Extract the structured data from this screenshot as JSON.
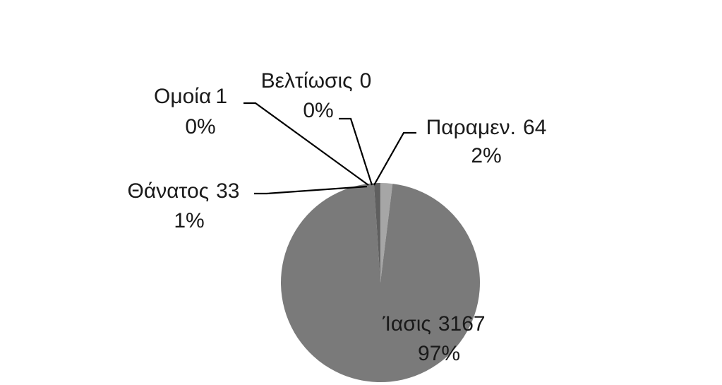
{
  "chart_data": {
    "type": "pie",
    "title": "",
    "start_angle_deg": 0,
    "direction": "clockwise",
    "slices": [
      {
        "name": "Παραμεν.",
        "value": 64,
        "percent_label": "2%",
        "color": "#a6a6a6"
      },
      {
        "name": "Ίασις",
        "value": 3167,
        "percent_label": "97%",
        "color": "#7a7a7a"
      },
      {
        "name": "Θάνατος",
        "value": 33,
        "percent_label": "1%",
        "color": "#5f5f5f"
      },
      {
        "name": "Ομοία",
        "value": 1,
        "percent_label": "0%",
        "color": "#4a4a4a"
      },
      {
        "name": "Βελτίωσις",
        "value": 0,
        "percent_label": "0%",
        "color": "#d9d9d9"
      }
    ]
  }
}
